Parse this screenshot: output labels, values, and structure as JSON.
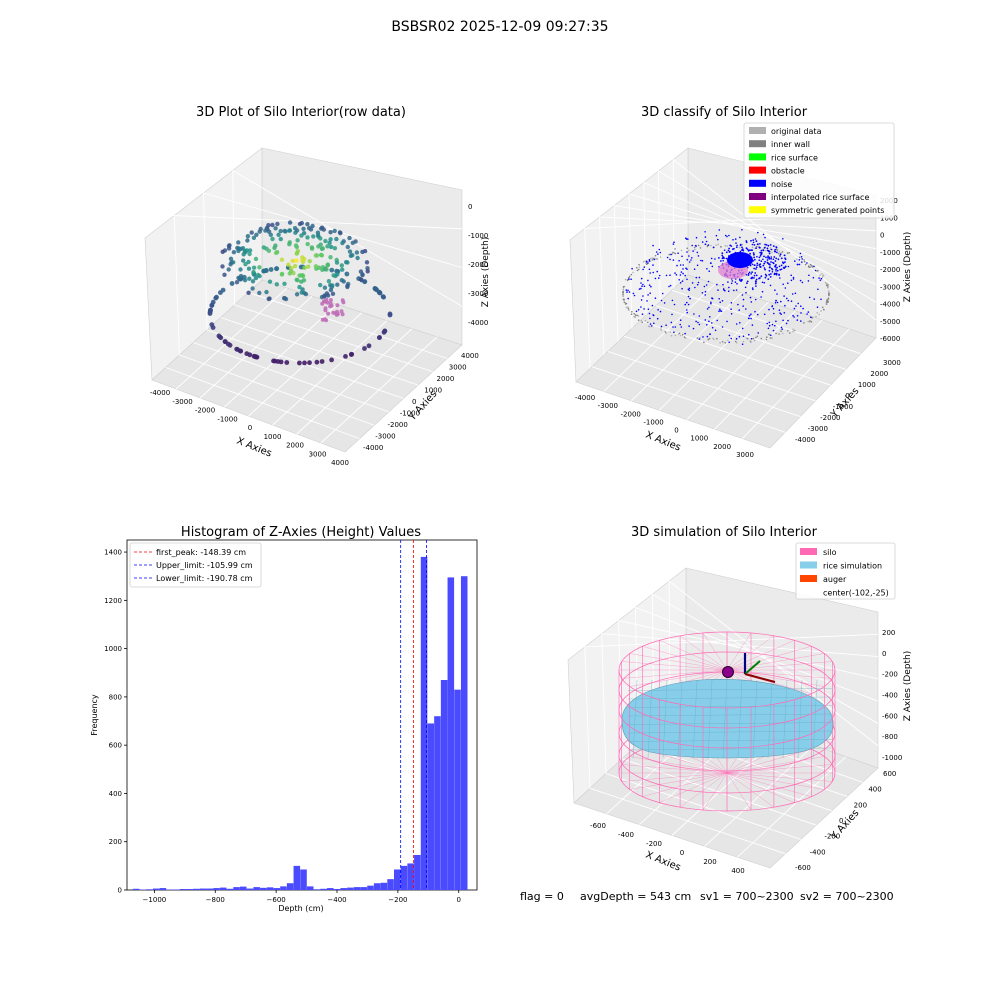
{
  "figure": {
    "suptitle": "BSBSR02 2025-12-09 09:27:35",
    "status": {
      "flag": "flag = 0",
      "avg_depth": "avgDepth = 543 cm",
      "sv1": "sv1 = 700~2300",
      "sv2": "sv2 = 700~2300"
    }
  },
  "colors": {
    "hist_bar": "#4a4aff",
    "peak_line": "#ff0000",
    "limit_line": "#0000ff",
    "original_data": "#b0b0b0",
    "inner_wall": "#808080",
    "rice_surface": "#00ff00",
    "obstacle": "#ff0000",
    "noise": "#0000ff",
    "interpolated_rice_surface": "#800080",
    "symmetric_generated_points": "#ffff00",
    "silo": "#ff69b4",
    "rice_simulation": "#87ceeb",
    "auger": "#ff4500"
  },
  "chart_data": [
    {
      "type": "scatter",
      "projection": "3d",
      "title": "3D Plot of Silo Interior(row data)",
      "xlabel": "X Axies",
      "ylabel": "Y Axies",
      "zlabel": "Z Axies (Depth)",
      "xticks": [
        "-4000",
        "-3000",
        "-2000",
        "-1000",
        "0",
        "1000",
        "2000",
        "3000",
        "4000"
      ],
      "yticks": [
        "-4000",
        "-3000",
        "-2000",
        "-1000",
        "0",
        "1000",
        "2000",
        "3000",
        "4000"
      ],
      "zticks": [
        "0",
        "-1000",
        "-2000",
        "-3000",
        "-4000"
      ],
      "colormap": "viridis"
    },
    {
      "type": "scatter",
      "projection": "3d",
      "title": "3D classify of Silo Interior",
      "xlabel": "X Axies",
      "ylabel": "Y Axies",
      "zlabel": "Z Axies (Depth)",
      "xticks": [
        "-4000",
        "-3000",
        "-2000",
        "-1000",
        "0",
        "1000",
        "2000",
        "3000"
      ],
      "yticks": [
        "-4000",
        "-3000",
        "-2000",
        "-1000",
        "0",
        "1000",
        "2000",
        "3000"
      ],
      "zticks": [
        "2000",
        "1000",
        "0",
        "-1000",
        "-2000",
        "-3000",
        "-4000",
        "-5000",
        "-6000"
      ],
      "legend": [
        "original data",
        "inner wall",
        "rice surface",
        "obstacle",
        "noise",
        "interpolated rice surface",
        "symmetric generated points"
      ],
      "legend_loc": "upper right"
    },
    {
      "type": "bar",
      "title": "Histogram of Z-Axies (Height) Values",
      "xlabel": "Depth (cm)",
      "ylabel": "Frequency",
      "xlim": [
        -1090,
        60
      ],
      "ylim": [
        0,
        1450
      ],
      "xticks": [
        -1000,
        -800,
        -600,
        -400,
        -200,
        0
      ],
      "yticks": [
        0,
        200,
        400,
        600,
        800,
        1000,
        1200,
        1400
      ],
      "bin_width": 21.5,
      "bins": [
        [
          -1060,
          5
        ],
        [
          -1038,
          2
        ],
        [
          -1016,
          3
        ],
        [
          -994,
          6
        ],
        [
          -972,
          8
        ],
        [
          -950,
          2
        ],
        [
          -928,
          2
        ],
        [
          -906,
          4
        ],
        [
          -884,
          4
        ],
        [
          -862,
          5
        ],
        [
          -840,
          6
        ],
        [
          -818,
          6
        ],
        [
          -796,
          8
        ],
        [
          -774,
          10
        ],
        [
          -752,
          5
        ],
        [
          -730,
          12
        ],
        [
          -708,
          14
        ],
        [
          -686,
          6
        ],
        [
          -664,
          12
        ],
        [
          -642,
          9
        ],
        [
          -620,
          11
        ],
        [
          -598,
          8
        ],
        [
          -576,
          15
        ],
        [
          -554,
          28
        ],
        [
          -532,
          100
        ],
        [
          -510,
          85
        ],
        [
          -488,
          15
        ],
        [
          -466,
          3
        ],
        [
          -444,
          5
        ],
        [
          -422,
          8
        ],
        [
          -400,
          4
        ],
        [
          -378,
          8
        ],
        [
          -356,
          10
        ],
        [
          -334,
          12
        ],
        [
          -312,
          12
        ],
        [
          -290,
          18
        ],
        [
          -268,
          28
        ],
        [
          -246,
          30
        ],
        [
          -224,
          45
        ],
        [
          -202,
          85
        ],
        [
          -180,
          100
        ],
        [
          -158,
          110
        ],
        [
          -136,
          145
        ],
        [
          -114,
          1380
        ],
        [
          -92,
          690
        ],
        [
          -70,
          720
        ],
        [
          -48,
          870
        ],
        [
          -26,
          1295
        ],
        [
          -4,
          830
        ],
        [
          18,
          1300
        ]
      ],
      "vlines": [
        {
          "label": "first_peak: -148.39 cm",
          "x": -148.39,
          "color": "#ff0000"
        },
        {
          "label": "Upper_limit: -105.99 cm",
          "x": -105.99,
          "color": "#0000ff"
        },
        {
          "label": "Lower_limit: -190.78 cm",
          "x": -190.78,
          "color": "#0000ff"
        }
      ],
      "legend_loc": "upper left"
    },
    {
      "type": "surface",
      "projection": "3d",
      "title": "3D simulation of Silo Interior",
      "xlabel": "X Axies",
      "ylabel": "Y Axies",
      "zlabel": "Z Axies (Depth)",
      "xticks": [
        "-600",
        "-400",
        "-200",
        "0",
        "200",
        "400"
      ],
      "yticks": [
        "-600",
        "-400",
        "-200",
        "0",
        "200",
        "400",
        "600"
      ],
      "zticks": [
        "200",
        "0",
        "-200",
        "-400",
        "-600",
        "-800",
        "-1000"
      ],
      "legend": [
        "silo",
        "rice simulation",
        "auger",
        "center(-102,-25)"
      ],
      "legend_loc": "upper right"
    }
  ]
}
